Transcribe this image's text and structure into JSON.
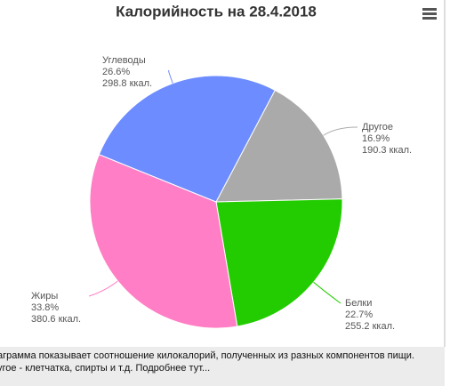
{
  "chart_data": {
    "type": "pie",
    "title": "Калорийность на 28.4.2018",
    "categories": [
      "Другое",
      "Белки",
      "Жиры",
      "Углеводы"
    ],
    "values": [
      16.9,
      22.7,
      33.8,
      26.6
    ],
    "value_labels": [
      "16.9%",
      "22.7%",
      "33.8%",
      "26.6%"
    ],
    "kcal": [
      190.3,
      255.2,
      380.6,
      298.8
    ],
    "kcal_labels": [
      "190.3 ккал.",
      "255.2 ккал.",
      "380.6 ккал.",
      "298.8 ккал."
    ],
    "colors": [
      "#aaaaaa",
      "#22cc00",
      "#ff7ec5",
      "#6c8cff"
    ]
  },
  "footer": {
    "lines": [
      "аграмма показывает соотношение килокалорий, полученных из разных компонентов пищи.",
      "угое - клетчатка, спирты и т.д. Подробнее тут..."
    ]
  }
}
